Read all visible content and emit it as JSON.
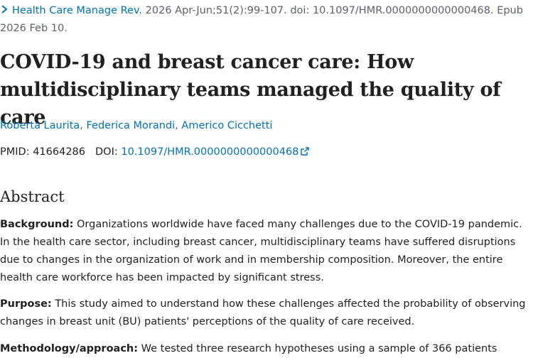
{
  "citation": {
    "journal": "Health Care Manage Rev.",
    "details": " 2026 Apr-Jun;51(2):99-107. doi: 10.1097/HMR.0000000000000468. Epub 2026 Feb 10."
  },
  "article": {
    "title": "COVID-19 and breast cancer care: How multidisciplinary teams managed the quality of care",
    "authors": [
      "Roberta Laurita",
      "Federica Morandi",
      "Americo Cicchetti"
    ],
    "pmid_label": "PMID:",
    "pmid": "41664286",
    "doi_label": "DOI:",
    "doi": "10.1097/HMR.0000000000000468"
  },
  "abstract": {
    "heading": "Abstract",
    "background_label": "Background:",
    "background_text": " Organizations worldwide have faced many challenges due to the COVID-19 pandemic. In the health care sector, including breast cancer, multidisciplinary teams have suffered disruptions due to changes in the organization of work and in membership composition. Moreover, the entire health care workforce has been impacted by significant stress.",
    "purpose_label": "Purpose:",
    "purpose_text": " This study aimed to understand how these challenges affected the probability of observing changes in breast unit (BU) patients' perceptions of the quality of care received.",
    "method_label": "Methodology/approach:",
    "method_text": " We tested three research hypotheses using a sample of 366 patients"
  },
  "icons": {
    "chevron": "chevron-right-icon",
    "external": "external-link-icon"
  },
  "colors": {
    "link": "#0071bc",
    "text": "#212121",
    "muted": "#5b616b"
  }
}
